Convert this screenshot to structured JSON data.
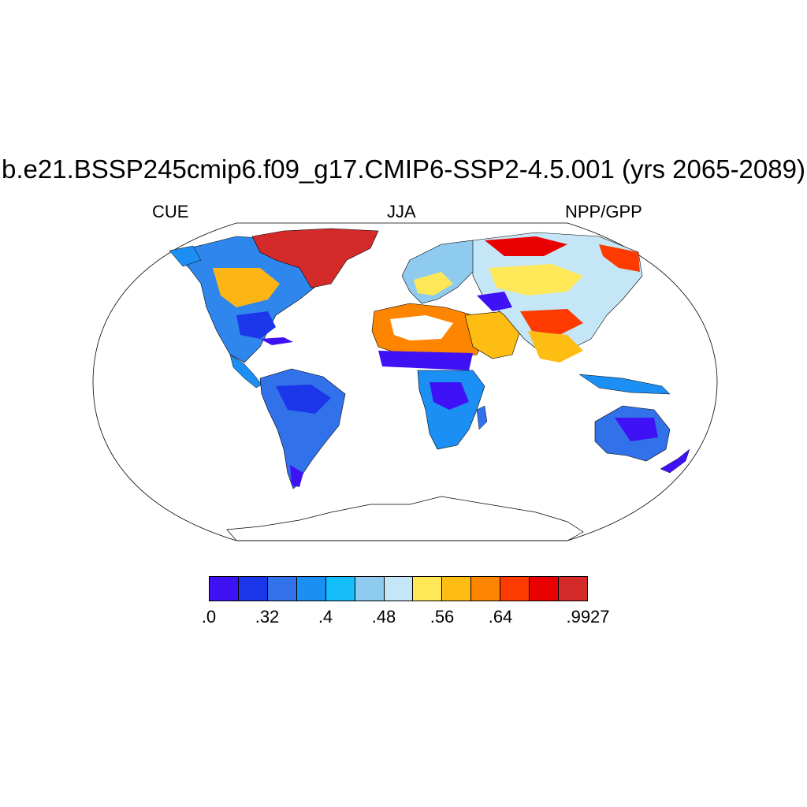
{
  "title": "b.e21.BSSP245cmip6.f09_g17.CMIP6-SSP2-4.5.001 (yrs 2065-2089)",
  "left_label": "CUE",
  "center_label": "JJA",
  "right_label": "NPP/GPP",
  "colorbar": {
    "colors": [
      "#3f12f5",
      "#1c36ea",
      "#3171e9",
      "#1b8ff3",
      "#15bdf9",
      "#8fcbef",
      "#c5e6f7",
      "#fee858",
      "#fdbd12",
      "#fd8500",
      "#fd3b01",
      "#e90000",
      "#d42a2a"
    ],
    "labels": [
      ".0",
      ".32",
      ".4",
      ".48",
      ".56",
      ".64",
      ".9927"
    ],
    "label_box_index": [
      0,
      2,
      4,
      6,
      8,
      10,
      13
    ]
  }
}
